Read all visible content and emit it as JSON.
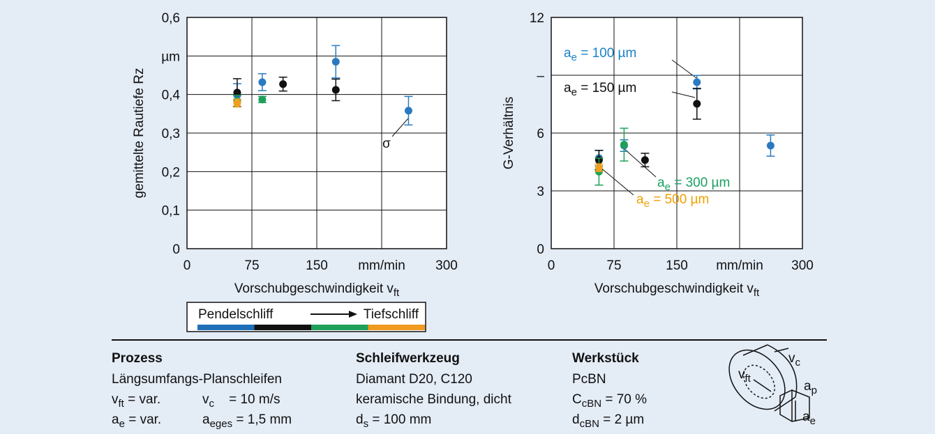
{
  "chart_data": [
    {
      "type": "scatter",
      "ylabel": "gemittelte Rautiefe Rz",
      "xlabel": [
        {
          "t": "Vorschubgeschwindigkeit v"
        },
        {
          "s": "ft"
        }
      ],
      "xlim": [
        0,
        300
      ],
      "xticks": [
        0,
        75,
        150,
        {
          "value": 225,
          "label": "mm/min"
        },
        300
      ],
      "ylim": [
        0,
        0.6
      ],
      "yticks": [
        0,
        {
          "value": 0.1,
          "label": "0,1"
        },
        {
          "value": 0.2,
          "label": "0,2"
        },
        {
          "value": 0.3,
          "label": "0,3"
        },
        {
          "value": 0.4,
          "label": "0,4"
        },
        {
          "value": 0.5,
          "label": "µm"
        },
        {
          "value": 0.6,
          "label": "0,6"
        }
      ],
      "grid": true,
      "series": [
        {
          "color": "#2a7ac0",
          "x": [
            58,
            87,
            172,
            256
          ],
          "values": [
            0.398,
            0.432,
            0.485,
            0.358
          ],
          "errors": [
            0.03,
            0.022,
            0.042,
            0.037
          ]
        },
        {
          "color": "#111111",
          "x": [
            58,
            111,
            172
          ],
          "values": [
            0.405,
            0.427,
            0.412
          ],
          "errors": [
            0.036,
            0.018,
            0.028
          ]
        },
        {
          "color": "#1fa05a",
          "x": [
            58,
            87
          ],
          "values": [
            0.383,
            0.387
          ],
          "errors": [
            0.015,
            0.008
          ]
        },
        {
          "color": "#f0a020",
          "x": [
            58
          ],
          "values": [
            0.378
          ],
          "errors": [
            0.01
          ]
        }
      ],
      "annotations": [
        {
          "parts": [
            {
              "t": "σ"
            }
          ],
          "color": "#111111"
        }
      ]
    },
    {
      "type": "scatter",
      "ylabel": "G-Verhältnis",
      "xlabel": [
        {
          "t": "Vorschubgeschwindigkeit v"
        },
        {
          "s": "ft"
        }
      ],
      "xlim": [
        0,
        300
      ],
      "xticks": [
        0,
        75,
        150,
        {
          "value": 225,
          "label": "mm/min"
        },
        300
      ],
      "ylim": [
        0,
        12
      ],
      "yticks": [
        0,
        3,
        6,
        {
          "value": 9,
          "label": "–"
        },
        12
      ],
      "grid": true,
      "series": [
        {
          "color": "#2a7ac0",
          "x": [
            57,
            87,
            174,
            262
          ],
          "values": [
            4.7,
            5.35,
            8.64,
            5.35
          ],
          "errors": [
            0.4,
            0.3,
            0.35,
            0.55
          ]
        },
        {
          "color": "#111111",
          "x": [
            57,
            112,
            174
          ],
          "values": [
            4.6,
            4.6,
            7.52
          ],
          "errors": [
            0.5,
            0.35,
            0.8
          ]
        },
        {
          "color": "#1fa05a",
          "x": [
            57,
            87
          ],
          "values": [
            4.0,
            5.4
          ],
          "errors": [
            0.7,
            0.85
          ]
        },
        {
          "color": "#f0a020",
          "x": [
            57
          ],
          "values": [
            4.2
          ],
          "errors": [
            0.2
          ]
        }
      ],
      "annotations": [
        {
          "parts": [
            {
              "t": "a"
            },
            {
              "s": "e"
            },
            {
              "t": " = 100 µm"
            }
          ],
          "color": "#1a82c8"
        },
        {
          "parts": [
            {
              "t": "a"
            },
            {
              "s": "e"
            },
            {
              "t": " = 150 µm"
            }
          ],
          "color": "#111111"
        },
        {
          "parts": [
            {
              "t": "a"
            },
            {
              "s": "e"
            },
            {
              "t": " = 300 µm"
            }
          ],
          "color": "#1aa060"
        },
        {
          "parts": [
            {
              "t": "a"
            },
            {
              "s": "e"
            },
            {
              "t": " = 500 µm"
            }
          ],
          "color": "#f0a000"
        }
      ]
    }
  ],
  "process_bar": {
    "from": "Pendelschliff",
    "to": "Tiefschliff",
    "colors": [
      "#1f6fb8",
      "#111111",
      "#1fa05a",
      "#f09a20"
    ]
  },
  "info": [
    {
      "title": "Prozess",
      "lines": [
        [
          [
            {
              "t": "Längsumfangs-Planschleifen"
            }
          ]
        ],
        [
          [
            {
              "t": "v"
            },
            {
              "s": "ft"
            },
            {
              "t": " = var."
            }
          ],
          [
            {
              "t": "v"
            },
            {
              "s": "c"
            },
            {
              "t": "    = 10 m/s"
            }
          ]
        ],
        [
          [
            {
              "t": "a"
            },
            {
              "s": "e"
            },
            {
              "t": " = var."
            }
          ],
          [
            {
              "t": "a"
            },
            {
              "s": "eges"
            },
            {
              "t": " = 1,5 mm"
            }
          ]
        ]
      ]
    },
    {
      "title": "Schleifwerkzeug",
      "lines": [
        [
          [
            {
              "t": "Diamant D20, C120"
            }
          ]
        ],
        [
          [
            {
              "t": "keramische Bindung, dicht"
            }
          ]
        ],
        [
          [
            {
              "t": "d"
            },
            {
              "s": "s"
            },
            {
              "t": " = 100 mm"
            }
          ]
        ]
      ]
    },
    {
      "title": "Werkstück",
      "lines": [
        [
          [
            {
              "t": "PcBN"
            }
          ]
        ],
        [
          [
            {
              "t": "C"
            },
            {
              "s": "cBN"
            },
            {
              "t": " = 70 %"
            }
          ]
        ],
        [
          [
            {
              "t": "d"
            },
            {
              "s": "cBN"
            },
            {
              "t": " = 2 µm"
            }
          ]
        ]
      ]
    }
  ],
  "diagram": [
    [
      {
        "t": "v"
      },
      {
        "s": "c"
      }
    ],
    [
      {
        "t": "v"
      },
      {
        "s": "ft"
      }
    ],
    [
      {
        "t": "a"
      },
      {
        "s": "p"
      }
    ],
    [
      {
        "t": "a"
      },
      {
        "s": "e"
      }
    ]
  ]
}
